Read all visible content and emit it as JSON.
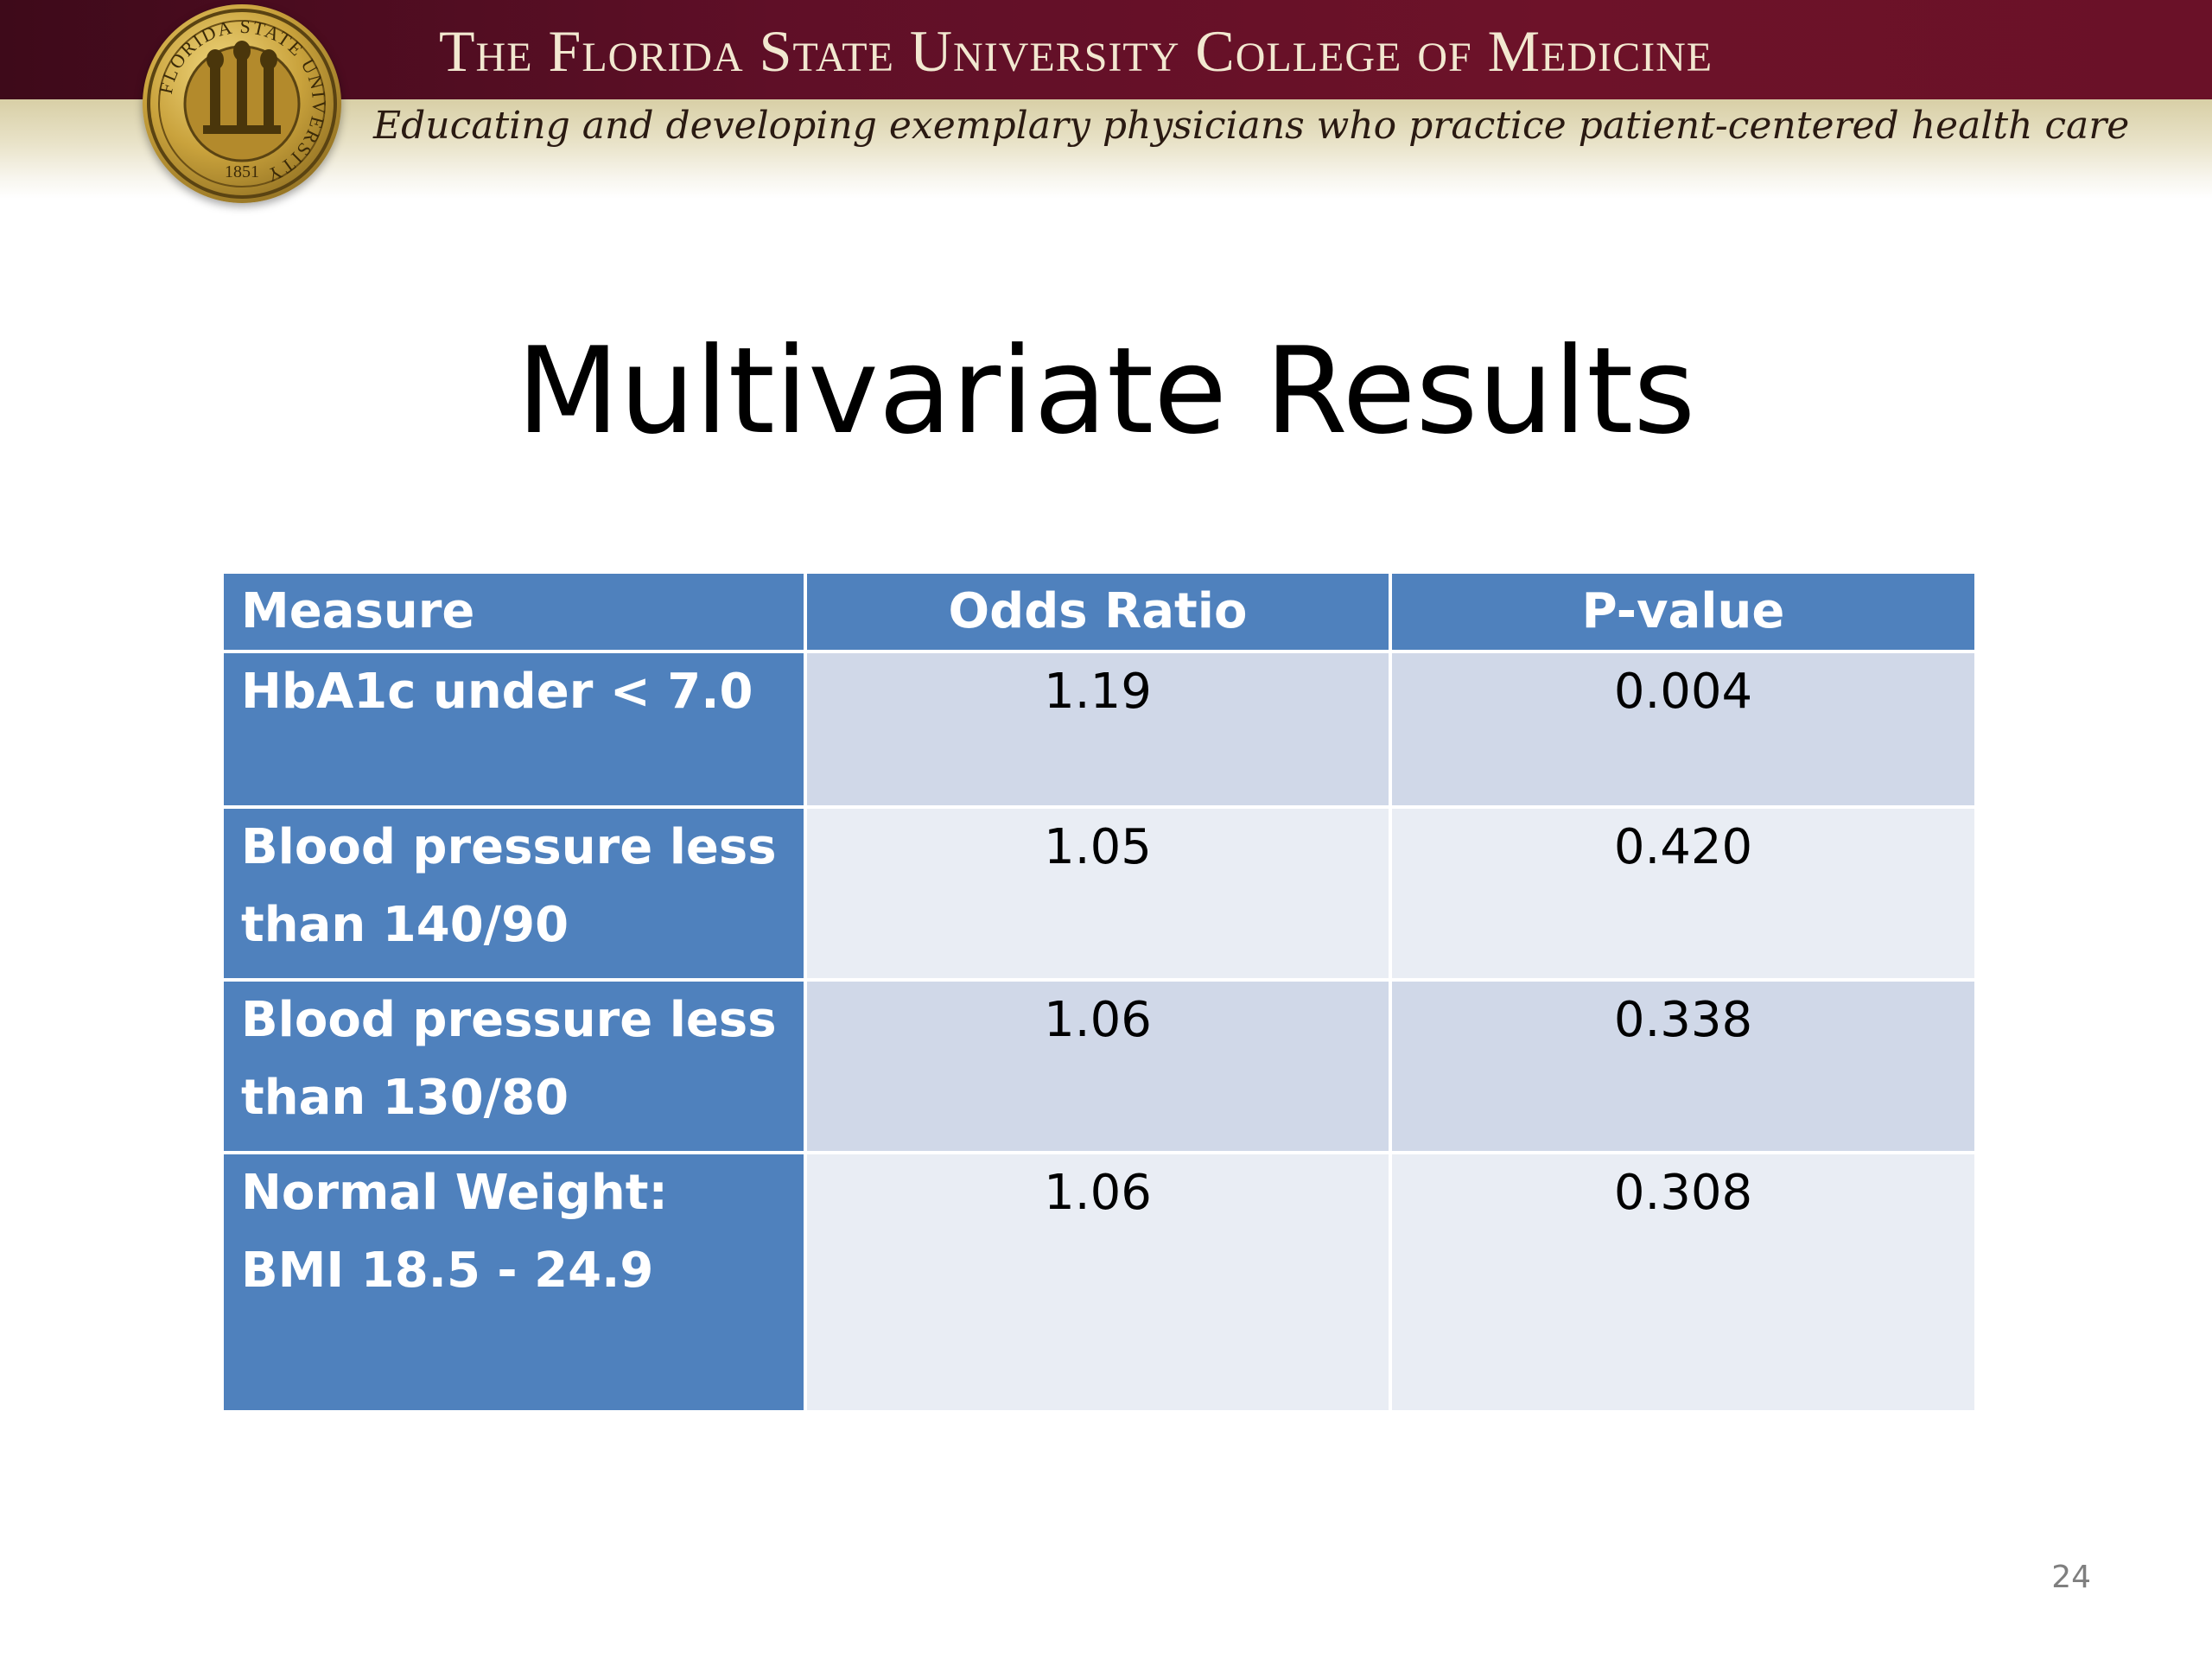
{
  "header": {
    "title": "The Florida State University College of Medicine",
    "tagline": "Educating and developing exemplary physicians who practice patient-centered health care",
    "seal": {
      "icon": "fsu-seal-icon",
      "ring_text": "FLORIDA STATE UNIVERSITY",
      "year": "1851"
    },
    "colors": {
      "garnet": "#6a1128",
      "gold": "#c9a23c"
    }
  },
  "slide": {
    "title": "Multivariate Results",
    "number": "24"
  },
  "table": {
    "headers": [
      "Measure",
      "Odds Ratio",
      "P-value"
    ],
    "rows": [
      {
        "measure_lines": [
          "HbA1c under < 7.0"
        ],
        "odds_ratio": "1.19",
        "p_value": "0.004"
      },
      {
        "measure_lines": [
          "Blood pressure less",
          "than 140/90"
        ],
        "odds_ratio": "1.05",
        "p_value": "0.420"
      },
      {
        "measure_lines": [
          "Blood pressure less",
          "than 130/80"
        ],
        "odds_ratio": "1.06",
        "p_value": "0.338"
      },
      {
        "measure_lines": [
          "Normal Weight:",
          "BMI 18.5 - 24.9"
        ],
        "odds_ratio": "1.06",
        "p_value": "0.308"
      }
    ],
    "colors": {
      "header_blue": "#4f81bd",
      "row_band_dark": "#d0d8e8",
      "row_band_light": "#e9edf4"
    }
  }
}
